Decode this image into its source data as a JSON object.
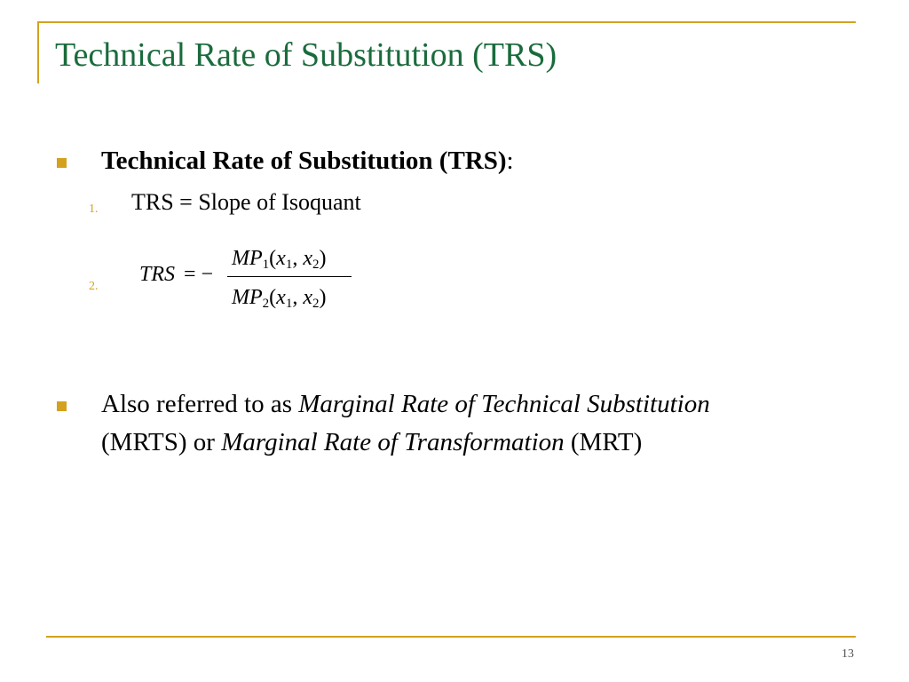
{
  "slide": {
    "title": "Technical Rate of Substitution (TRS)",
    "page_number": "13"
  },
  "bullets": [
    {
      "heading": "Technical Rate of Substitution (TRS)",
      "suffix": ":",
      "items": [
        {
          "number": "1.",
          "text": "TRS = Slope of Isoquant"
        },
        {
          "number": "2.",
          "equation": {
            "lhs": "TRS",
            "operator": "= −",
            "numerator": {
              "name": "MP",
              "index": "1",
              "open": "(",
              "arg1": "x",
              "arg1_sub": "1",
              "comma": ",",
              "arg2": "x",
              "arg2_sub": "2",
              "close": ")"
            },
            "denominator": {
              "name": "MP",
              "index": "2",
              "open": "(",
              "arg1": "x",
              "arg1_sub": "1",
              "comma": ",",
              "arg2": "x",
              "arg2_sub": "2",
              "close": ")"
            }
          }
        }
      ]
    },
    {
      "line1_prefix": "Also referred to as ",
      "line1_term": "Marginal Rate of Technical Substitution",
      "line2_prefix": "(MRTS) or ",
      "line2_term": "Marginal Rate of Transformation",
      "line2_suffix": " (MRT)"
    }
  ],
  "colors": {
    "title": "#1a6b3c",
    "accent": "#d4a11e",
    "text": "#000000"
  }
}
